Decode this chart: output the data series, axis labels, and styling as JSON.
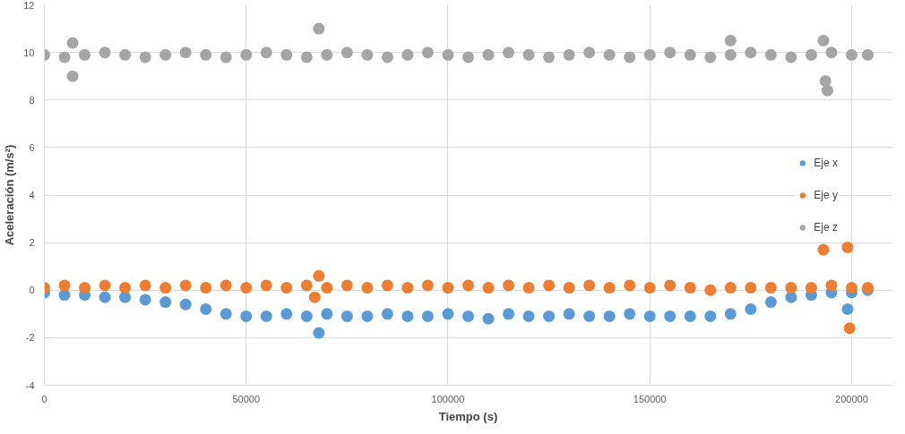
{
  "chart_data": {
    "type": "scatter",
    "xlabel": "Tiempo (s)",
    "ylabel": "Aceleración (m/s²)",
    "xlim": [
      0,
      210000
    ],
    "xticks": [
      0,
      50000,
      100000,
      150000,
      200000
    ],
    "ylim": [
      -4,
      12
    ],
    "yticks": [
      -4,
      -2,
      0,
      2,
      4,
      6,
      8,
      10,
      12
    ],
    "grid": true,
    "legend": "right",
    "marker": "circle",
    "series": [
      {
        "name": "Eje x",
        "color": "#5b9bd5",
        "x": [
          0,
          5000,
          10000,
          15000,
          20000,
          25000,
          30000,
          35000,
          40000,
          45000,
          50000,
          55000,
          60000,
          65000,
          70000,
          75000,
          80000,
          85000,
          90000,
          95000,
          100000,
          105000,
          110000,
          115000,
          120000,
          125000,
          130000,
          135000,
          140000,
          145000,
          150000,
          155000,
          160000,
          165000,
          170000,
          175000,
          180000,
          185000,
          190000,
          195000,
          200000,
          204000,
          68000,
          199000
        ],
        "values": [
          -0.1,
          -0.2,
          -0.2,
          -0.3,
          -0.3,
          -0.4,
          -0.5,
          -0.6,
          -0.8,
          -1.0,
          -1.1,
          -1.1,
          -1.0,
          -1.1,
          -1.0,
          -1.1,
          -1.1,
          -1.0,
          -1.1,
          -1.1,
          -1.0,
          -1.1,
          -1.2,
          -1.0,
          -1.1,
          -1.1,
          -1.0,
          -1.1,
          -1.1,
          -1.0,
          -1.1,
          -1.1,
          -1.1,
          -1.1,
          -1.0,
          -0.8,
          -0.5,
          -0.3,
          -0.2,
          -0.1,
          -0.1,
          0.0,
          -1.8,
          -0.8
        ]
      },
      {
        "name": "Eje y",
        "color": "#ed7d31",
        "x": [
          0,
          5000,
          10000,
          15000,
          20000,
          25000,
          30000,
          35000,
          40000,
          45000,
          50000,
          55000,
          60000,
          65000,
          70000,
          75000,
          80000,
          85000,
          90000,
          95000,
          100000,
          105000,
          110000,
          115000,
          120000,
          125000,
          130000,
          135000,
          140000,
          145000,
          150000,
          155000,
          160000,
          165000,
          170000,
          175000,
          180000,
          185000,
          190000,
          195000,
          200000,
          204000,
          67000,
          68000,
          193000,
          199000,
          199500
        ],
        "values": [
          0.1,
          0.2,
          0.1,
          0.2,
          0.1,
          0.2,
          0.1,
          0.2,
          0.1,
          0.2,
          0.1,
          0.2,
          0.1,
          0.2,
          0.1,
          0.2,
          0.1,
          0.2,
          0.1,
          0.2,
          0.1,
          0.2,
          0.1,
          0.2,
          0.1,
          0.2,
          0.1,
          0.2,
          0.1,
          0.2,
          0.1,
          0.2,
          0.1,
          0.0,
          0.1,
          0.1,
          0.1,
          0.1,
          0.1,
          0.2,
          0.1,
          0.1,
          -0.3,
          0.6,
          1.7,
          1.8,
          -1.6
        ]
      },
      {
        "name": "Eje z",
        "color": "#a5a5a5",
        "x": [
          0,
          5000,
          10000,
          15000,
          20000,
          25000,
          30000,
          35000,
          40000,
          45000,
          50000,
          55000,
          60000,
          65000,
          70000,
          75000,
          80000,
          85000,
          90000,
          95000,
          100000,
          105000,
          110000,
          115000,
          120000,
          125000,
          130000,
          135000,
          140000,
          145000,
          150000,
          155000,
          160000,
          165000,
          170000,
          175000,
          180000,
          185000,
          190000,
          195000,
          200000,
          204000,
          7000,
          7000,
          68000,
          170000,
          193000,
          193500,
          194000
        ],
        "values": [
          9.9,
          9.8,
          9.9,
          10.0,
          9.9,
          9.8,
          9.9,
          10.0,
          9.9,
          9.8,
          9.9,
          10.0,
          9.9,
          9.8,
          9.9,
          10.0,
          9.9,
          9.8,
          9.9,
          10.0,
          9.9,
          9.8,
          9.9,
          10.0,
          9.9,
          9.8,
          9.9,
          10.0,
          9.9,
          9.8,
          9.9,
          10.0,
          9.9,
          9.8,
          9.9,
          10.0,
          9.9,
          9.8,
          9.9,
          10.0,
          9.9,
          9.9,
          9.0,
          10.4,
          11.0,
          10.5,
          10.5,
          8.8,
          8.4
        ]
      }
    ]
  }
}
